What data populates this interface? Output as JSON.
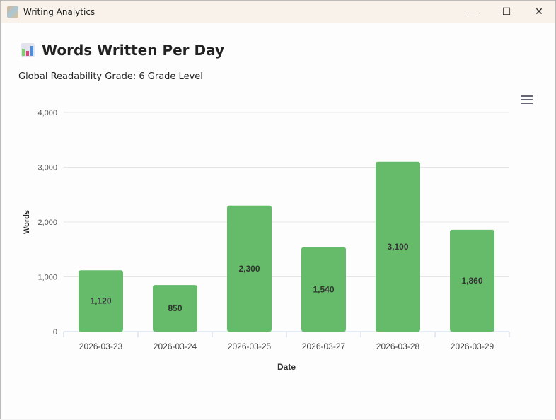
{
  "window": {
    "title": "Writing Analytics",
    "controls": {
      "minimize": "—",
      "maximize": "☐",
      "close": "✕"
    }
  },
  "header": {
    "title": "Words Written Per Day",
    "icon": "bar-chart-icon",
    "subtitle": "Global Readability Grade: 6 Grade Level"
  },
  "colors": {
    "bar": "#66bb6a"
  },
  "chart_data": {
    "type": "bar",
    "categories": [
      "2026-03-23",
      "2026-03-24",
      "2026-03-25",
      "2026-03-27",
      "2026-03-28",
      "2026-03-29"
    ],
    "values": [
      1120,
      850,
      2300,
      1540,
      3100,
      1860
    ],
    "data_labels": [
      "1,120",
      "850",
      "2,300",
      "1,540",
      "3,100",
      "1,860"
    ],
    "xlabel": "Date",
    "ylabel": "Words",
    "ylim": [
      0,
      4000
    ],
    "yticks": [
      "0",
      "1,000",
      "2,000",
      "3,000",
      "4,000"
    ],
    "grid": true,
    "legend": "none"
  }
}
